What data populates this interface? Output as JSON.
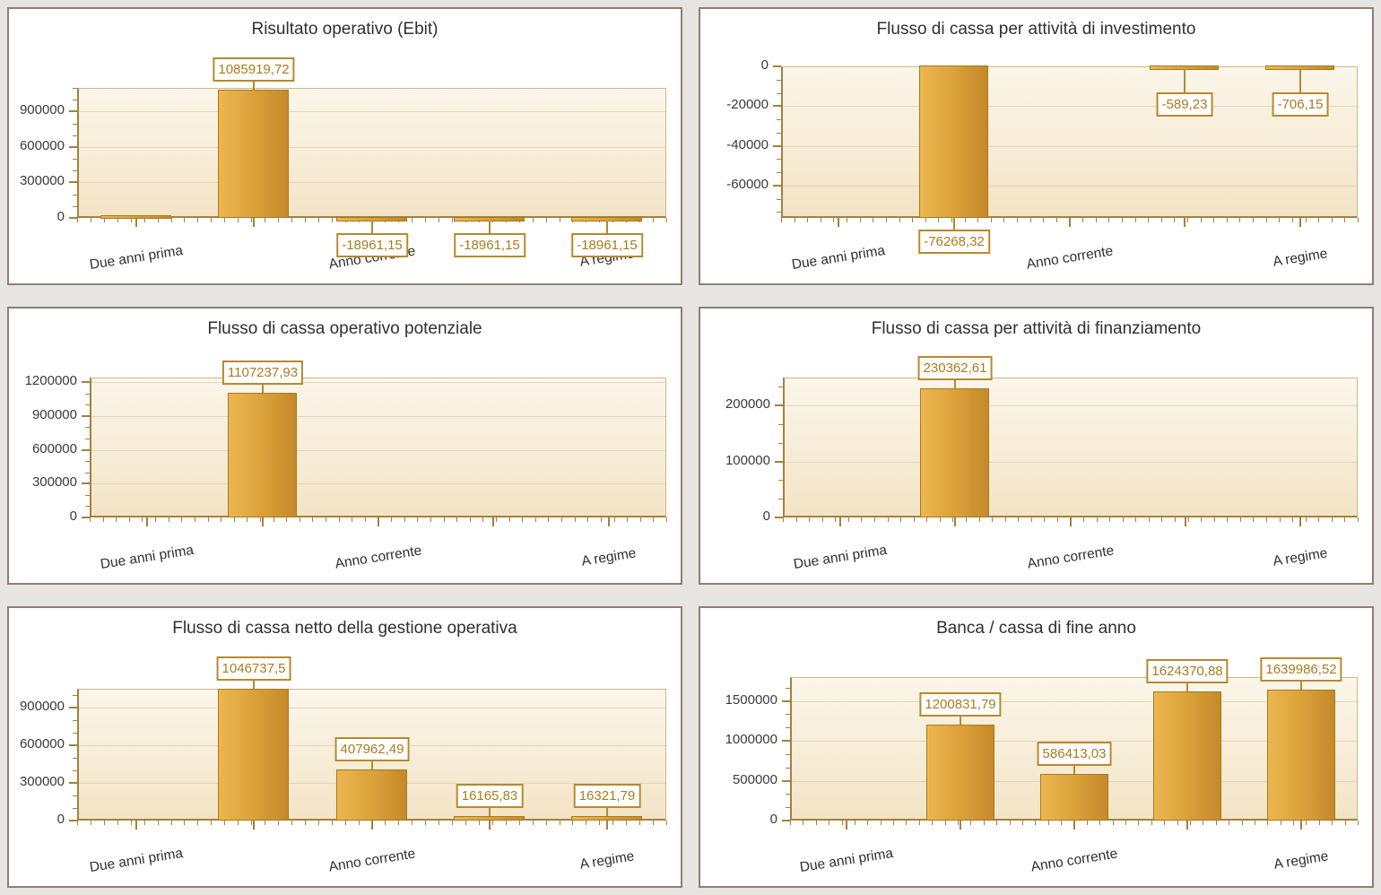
{
  "page": {
    "background": "#e7e5e2"
  },
  "colors": {
    "page_bg": "#e7e5e2",
    "panel_bg": "#ffffff",
    "panel_border": "#8e7f73",
    "plot_bg_top": "#fbf6ea",
    "plot_bg_bottom": "#f3e4c6",
    "plot_border": "#cfb787",
    "axis": "#a5813e",
    "gridline": "#e0d5bd",
    "bar_light": "#ecb64f",
    "bar_mid": "#dda43c",
    "bar_dark": "#c5892a",
    "bar_border": "#a87a1e",
    "annotation_border": "#b8892c",
    "annotation_text": "#a97c1e",
    "annotation_bg": "#ffffff",
    "title_text": "#303030",
    "axis_text": "#3a3a3a"
  },
  "chart_data": [
    {
      "type": "bar",
      "title": "Risultato operativo (Ebit)",
      "x_categories": [
        "Due anni prima",
        "Anno corrente",
        "A regime"
      ],
      "ylim": [
        0,
        1100000
      ],
      "yticks": [
        0,
        300000,
        600000,
        900000
      ],
      "bars": [
        {
          "slot": 0,
          "value": 0,
          "label": null
        },
        {
          "slot": 1,
          "value": 1085919.72,
          "label": "1085919,72"
        },
        {
          "slot": 2,
          "value": -18961.15,
          "label": "-18961,15"
        },
        {
          "slot": 3,
          "value": -18961.15,
          "label": "-18961,15"
        },
        {
          "slot": 4,
          "value": -18961.15,
          "label": "-18961,15"
        }
      ]
    },
    {
      "type": "bar",
      "title": "Flusso di cassa per attività di investimento",
      "x_categories": [
        "Due anni prima",
        "Anno corrente",
        "A regime"
      ],
      "ylim": [
        -76270,
        0
      ],
      "yticks": [
        0,
        -20000,
        -40000,
        -60000
      ],
      "bars": [
        {
          "slot": 1,
          "value": -76268.32,
          "label": "-76268,32"
        },
        {
          "slot": 3,
          "value": -589.23,
          "label": "-589,23",
          "label_gap": 26
        },
        {
          "slot": 4,
          "value": -706.15,
          "label": "-706,15",
          "label_gap": 26
        }
      ]
    },
    {
      "type": "bar",
      "title": "Flusso di cassa operativo potenziale",
      "x_categories": [
        "Due anni prima",
        "Anno corrente",
        "A regime"
      ],
      "ylim": [
        0,
        1240000
      ],
      "yticks": [
        0,
        300000,
        600000,
        900000,
        1200000
      ],
      "bars": [
        {
          "slot": 1,
          "value": 1107237.93,
          "label": "1107237,93"
        }
      ]
    },
    {
      "type": "bar",
      "title": "Flusso di cassa per attività di finanziamento",
      "x_categories": [
        "Due anni prima",
        "Anno corrente",
        "A regime"
      ],
      "ylim": [
        0,
        250000
      ],
      "yticks": [
        0,
        100000,
        200000
      ],
      "bars": [
        {
          "slot": 1,
          "value": 230362.61,
          "label": "230362,61"
        }
      ]
    },
    {
      "type": "bar",
      "title": "Flusso di cassa netto della gestione operativa",
      "x_categories": [
        "Due anni prima",
        "Anno corrente",
        "A regime"
      ],
      "ylim": [
        0,
        1050000
      ],
      "yticks": [
        0,
        300000,
        600000,
        900000
      ],
      "bars": [
        {
          "slot": 1,
          "value": 1046737.5,
          "label": "1046737,5"
        },
        {
          "slot": 2,
          "value": 407962.49,
          "label": "407962,49"
        },
        {
          "slot": 3,
          "value": 16165.83,
          "label": "16165,83"
        },
        {
          "slot": 4,
          "value": 16321.79,
          "label": "16321,79"
        }
      ]
    },
    {
      "type": "bar",
      "title": "Banca / cassa di fine anno",
      "x_categories": [
        "Due anni prima",
        "Anno corrente",
        "A regime"
      ],
      "ylim": [
        0,
        1800000
      ],
      "yticks": [
        0,
        500000,
        1000000,
        1500000
      ],
      "bars": [
        {
          "slot": 1,
          "value": 1200831.79,
          "label": "1200831,79"
        },
        {
          "slot": 2,
          "value": 586413.03,
          "label": "586413,03"
        },
        {
          "slot": 3,
          "value": 1624370.88,
          "label": "1624370,88"
        },
        {
          "slot": 4,
          "value": 1639986.52,
          "label": "1639986,52"
        }
      ]
    }
  ]
}
